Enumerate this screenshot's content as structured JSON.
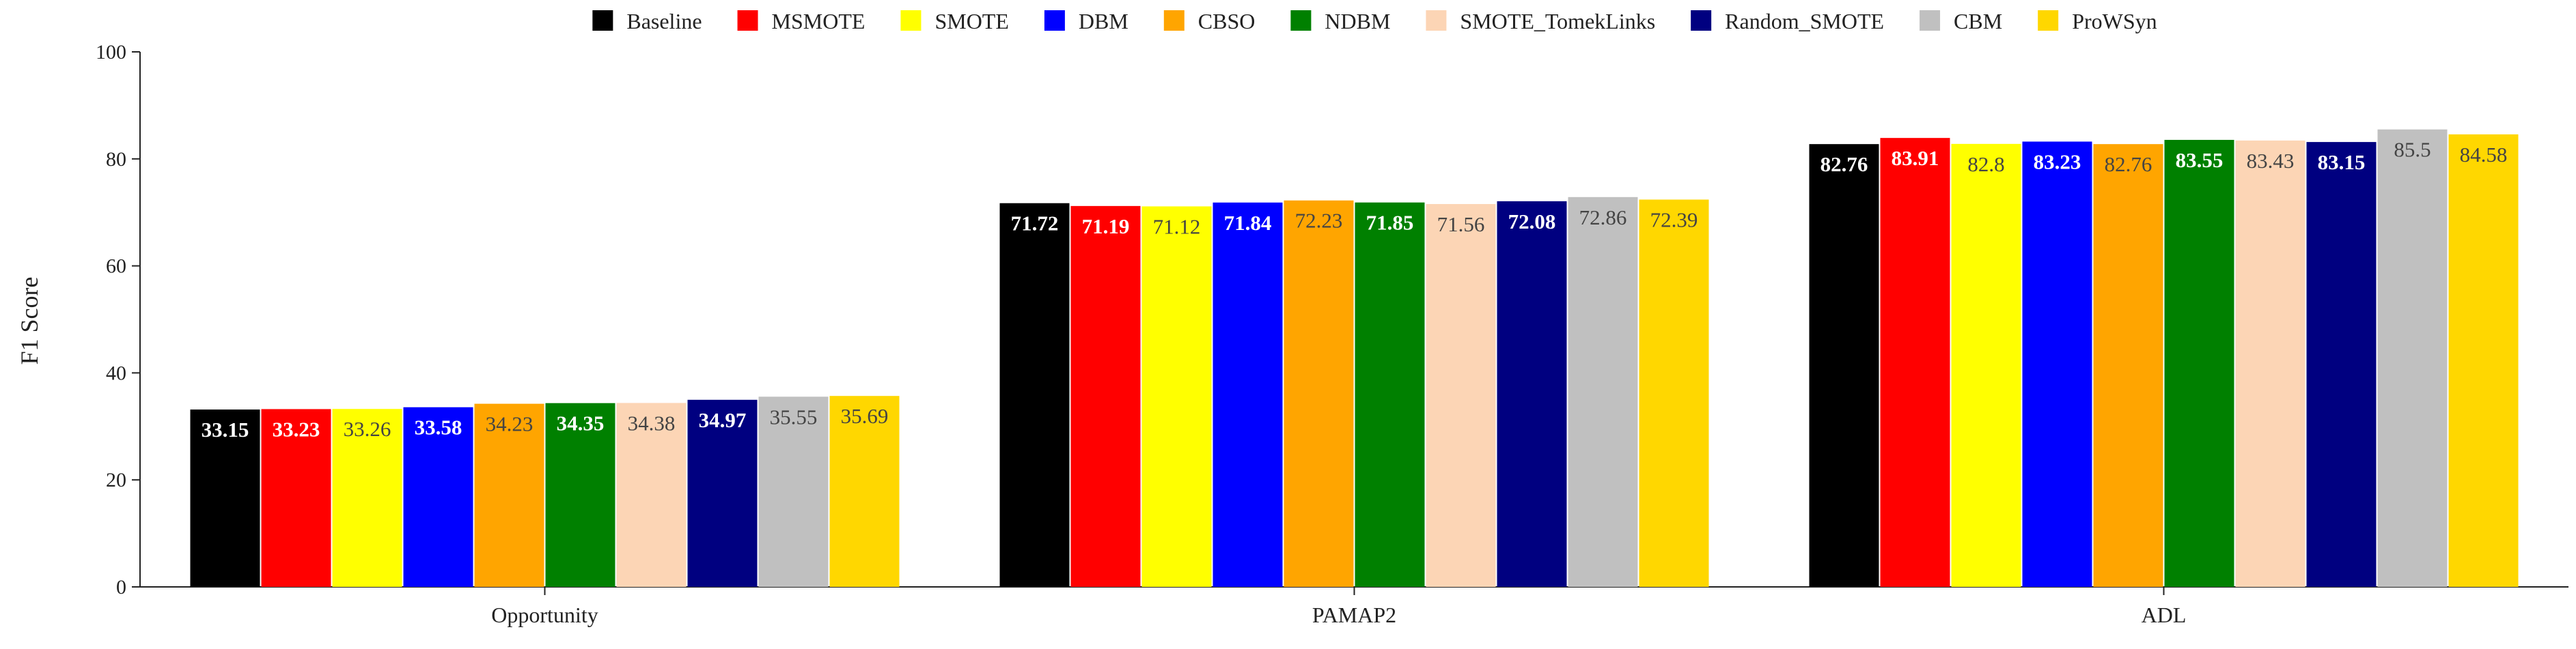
{
  "chart_data": {
    "type": "bar",
    "ylabel": "F1 Score",
    "ylim": [
      0,
      100
    ],
    "yticks": [
      0,
      20,
      40,
      60,
      80,
      100
    ],
    "categories": [
      "Opportunity",
      "PAMAP2",
      "ADL"
    ],
    "legend_position": "top-center",
    "grid": false,
    "series": [
      {
        "name": "Baseline",
        "color": "#000000",
        "label_color": "#ffffff",
        "label_bold": true,
        "values": [
          33.15,
          71.72,
          82.76
        ]
      },
      {
        "name": "MSMOTE",
        "color": "#ff0000",
        "label_color": "#ffffff",
        "label_bold": true,
        "values": [
          33.23,
          71.19,
          83.91
        ]
      },
      {
        "name": "SMOTE",
        "color": "#ffff00",
        "label_color": "#444444",
        "label_bold": false,
        "values": [
          33.26,
          71.12,
          82.8
        ]
      },
      {
        "name": "DBM",
        "color": "#0000ff",
        "label_color": "#ffffff",
        "label_bold": true,
        "values": [
          33.58,
          71.84,
          83.23
        ]
      },
      {
        "name": "CBSO",
        "color": "#ffa500",
        "label_color": "#444444",
        "label_bold": false,
        "values": [
          34.23,
          72.23,
          82.76
        ]
      },
      {
        "name": "NDBM",
        "color": "#008000",
        "label_color": "#ffffff",
        "label_bold": true,
        "values": [
          34.35,
          71.85,
          83.55
        ]
      },
      {
        "name": "SMOTE_TomekLinks",
        "color": "#fcd5b5",
        "label_color": "#444444",
        "label_bold": false,
        "values": [
          34.38,
          71.56,
          83.43
        ]
      },
      {
        "name": "Random_SMOTE",
        "color": "#000080",
        "label_color": "#ffffff",
        "label_bold": true,
        "values": [
          34.97,
          72.08,
          83.15
        ]
      },
      {
        "name": "CBM",
        "color": "#c0c0c0",
        "label_color": "#444444",
        "label_bold": false,
        "values": [
          35.55,
          72.86,
          85.5
        ]
      },
      {
        "name": "ProWSyn",
        "color": "#ffd700",
        "label_color": "#444444",
        "label_bold": false,
        "values": [
          35.69,
          72.39,
          84.58
        ]
      }
    ]
  }
}
